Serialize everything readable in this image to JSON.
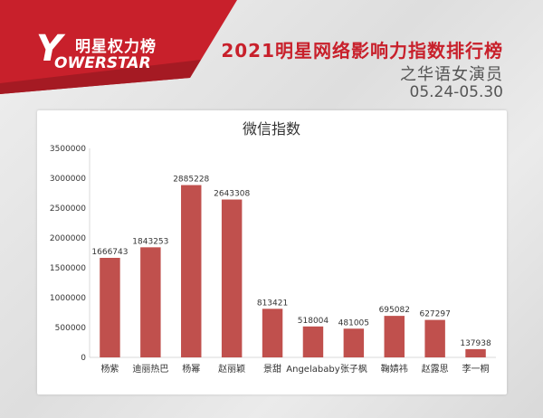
{
  "header": {
    "logo_cn": "明星权力榜",
    "logo_mark": "Y",
    "logo_en": "OWERSTAR",
    "title": "2021明星网络影响力指数排行榜",
    "subtitle": "之华语女演员",
    "date_range": "05.24-05.30"
  },
  "colors": {
    "brand_red": "#c8202b",
    "bar": "#c0504d",
    "bar_top": "#d87a75"
  },
  "chart_data": {
    "type": "bar",
    "title": "微信指数",
    "xlabel": "",
    "ylabel": "",
    "ylim": [
      0,
      3500000
    ],
    "yticks": [
      "0",
      "500000",
      "1000000",
      "1500000",
      "2000000",
      "2500000",
      "3000000",
      "3500000"
    ],
    "grid": false,
    "legend": "none",
    "categories": [
      "杨紫",
      "迪丽热巴",
      "杨幂",
      "赵丽颖",
      "景甜",
      "Angelababy",
      "张子枫",
      "鞠婧祎",
      "赵露思",
      "李一桐"
    ],
    "values": [
      1666743,
      1843253,
      2885228,
      2643308,
      813421,
      518004,
      481005,
      695082,
      627297,
      137938
    ],
    "data_labels": [
      "1666743",
      "1843253",
      "2885228",
      "2643308",
      "813421",
      "518004",
      "481005",
      "695082",
      "627297",
      "137938"
    ]
  }
}
